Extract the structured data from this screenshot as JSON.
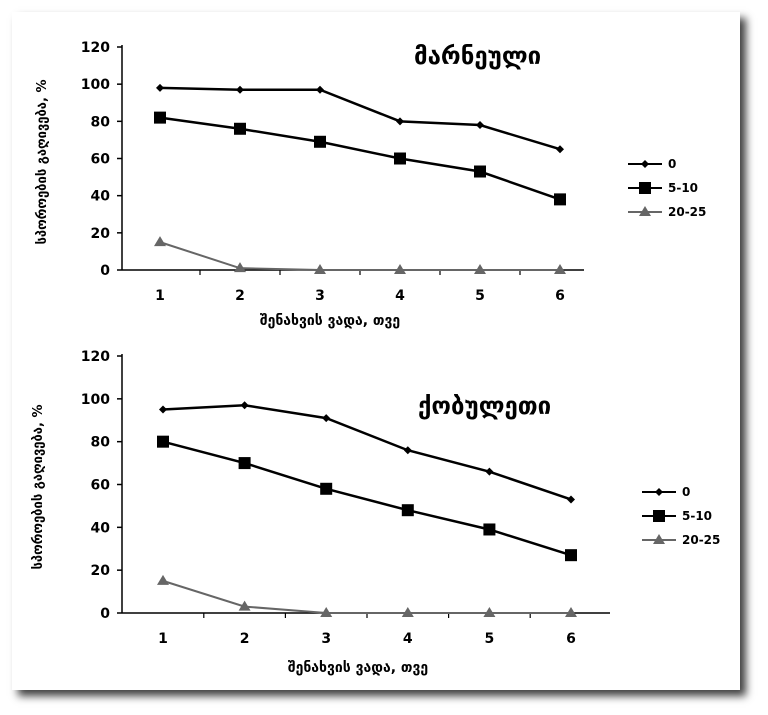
{
  "chart_data": [
    {
      "type": "line",
      "title": "მარნეული",
      "xlabel": "შენახვის ვადა, თვე",
      "ylabel": "სპოროების გაღივება, %",
      "categories": [
        "1",
        "2",
        "3",
        "4",
        "5",
        "6"
      ],
      "ylim": [
        0,
        120
      ],
      "yticks": [
        "0",
        "20",
        "40",
        "60",
        "80",
        "100",
        "120"
      ],
      "legend_position": "right",
      "series": [
        {
          "name": "0",
          "values": [
            98,
            97,
            97,
            80,
            78,
            65
          ],
          "color": "#000000",
          "marker": "diamond"
        },
        {
          "name": "5-10",
          "values": [
            82,
            76,
            69,
            60,
            53,
            38
          ],
          "color": "#000000",
          "marker": "square"
        },
        {
          "name": "20-25",
          "values": [
            15,
            1,
            0,
            0,
            0,
            0
          ],
          "color": "#666666",
          "marker": "triangle"
        }
      ]
    },
    {
      "type": "line",
      "title": "ქობულეთი",
      "xlabel": "შენახვის ვადა, თვე",
      "ylabel": "სპოროების გაღივება, %",
      "categories": [
        "1",
        "2",
        "3",
        "4",
        "5",
        "6"
      ],
      "ylim": [
        0,
        120
      ],
      "yticks": [
        "0",
        "20",
        "40",
        "60",
        "80",
        "100",
        "120"
      ],
      "legend_position": "right",
      "series": [
        {
          "name": "0",
          "values": [
            95,
            97,
            91,
            76,
            66,
            53
          ],
          "color": "#000000",
          "marker": "diamond"
        },
        {
          "name": "5-10",
          "values": [
            80,
            70,
            58,
            48,
            39,
            27
          ],
          "color": "#000000",
          "marker": "square"
        },
        {
          "name": "20-25",
          "values": [
            15,
            3,
            0,
            0,
            0,
            0
          ],
          "color": "#666666",
          "marker": "triangle"
        }
      ]
    }
  ]
}
